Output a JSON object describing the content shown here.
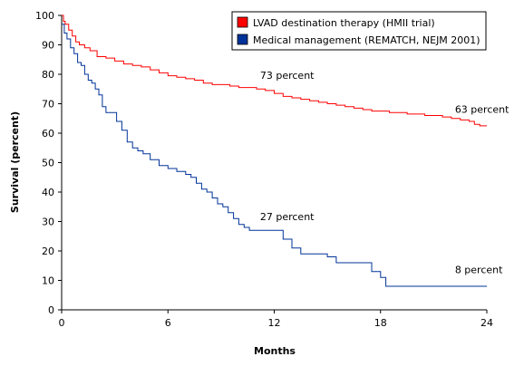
{
  "chart_data": {
    "type": "line",
    "step": true,
    "xlabel": "Months",
    "ylabel": "Survival (percent)",
    "xlim": [
      0,
      24
    ],
    "ylim": [
      0,
      100
    ],
    "xticks": [
      0,
      6,
      12,
      18,
      24
    ],
    "yticks": [
      0,
      10,
      20,
      30,
      40,
      50,
      60,
      70,
      80,
      90,
      100
    ],
    "grid": false,
    "legend_position": "top-right",
    "series": [
      {
        "name": "LVAD destination therapy (HMII trial)",
        "color": "#ff0000",
        "x": [
          0,
          0.1,
          0.2,
          0.4,
          0.6,
          0.8,
          1.0,
          1.3,
          1.6,
          2.0,
          2.5,
          3.0,
          3.5,
          4.0,
          4.5,
          5.0,
          5.5,
          6.0,
          6.5,
          7.0,
          7.5,
          8.0,
          8.5,
          9.0,
          9.5,
          10.0,
          10.5,
          11.0,
          11.5,
          12.0,
          12.5,
          13.0,
          13.5,
          14.0,
          14.5,
          15.0,
          15.5,
          16.0,
          16.5,
          17.0,
          17.5,
          18.0,
          18.5,
          19.0,
          19.5,
          20.0,
          20.5,
          21.0,
          21.5,
          22.0,
          22.5,
          23.0,
          23.3,
          23.6,
          24.0
        ],
        "y": [
          100,
          98,
          97,
          95,
          93,
          91,
          90,
          89,
          88,
          86,
          85.5,
          84.5,
          83.5,
          83,
          82.5,
          81.5,
          80.5,
          79.5,
          79,
          78.5,
          78,
          77,
          76.5,
          76.5,
          76,
          75.5,
          75.5,
          75,
          74.5,
          73.5,
          72.5,
          72,
          71.5,
          71,
          70.5,
          70,
          69.5,
          69,
          68.5,
          68,
          67.5,
          67.5,
          67,
          67,
          66.5,
          66.5,
          66,
          66,
          65.5,
          65,
          64.5,
          64,
          63,
          62.5,
          62.5
        ]
      },
      {
        "name": "Medical management (REMATCH, NEJM 2001)",
        "color": "#003399",
        "x": [
          0,
          0.15,
          0.3,
          0.5,
          0.7,
          0.9,
          1.1,
          1.3,
          1.5,
          1.7,
          1.9,
          2.1,
          2.3,
          2.5,
          2.8,
          3.1,
          3.4,
          3.7,
          4.0,
          4.3,
          4.6,
          5.0,
          5.5,
          6.0,
          6.5,
          7.0,
          7.3,
          7.6,
          7.9,
          8.2,
          8.5,
          8.8,
          9.1,
          9.4,
          9.7,
          10.0,
          10.3,
          10.6,
          11.0,
          12.0,
          12.5,
          13.0,
          13.5,
          14.0,
          15.0,
          15.5,
          16.0,
          16.5,
          17.0,
          17.5,
          18.0,
          18.3,
          24.0
        ],
        "y": [
          97,
          94,
          92,
          89,
          87,
          84,
          83,
          80,
          78,
          77,
          75,
          73,
          69,
          67,
          67,
          64,
          61,
          57,
          55,
          54,
          53,
          51,
          49,
          48,
          47,
          46,
          45,
          43,
          41,
          40,
          38,
          36,
          35,
          33,
          31,
          29,
          28,
          27,
          27,
          27,
          24,
          21,
          19,
          19,
          18,
          16,
          16,
          16,
          16,
          13,
          11,
          8,
          8
        ]
      }
    ],
    "annotations": [
      {
        "text": "73 percent",
        "x": 11.2,
        "y": 78.5
      },
      {
        "text": "63 percent",
        "x": 22.2,
        "y": 67
      },
      {
        "text": "27 percent",
        "x": 11.2,
        "y": 30.5
      },
      {
        "text": "8 percent",
        "x": 22.2,
        "y": 12.5
      }
    ]
  }
}
